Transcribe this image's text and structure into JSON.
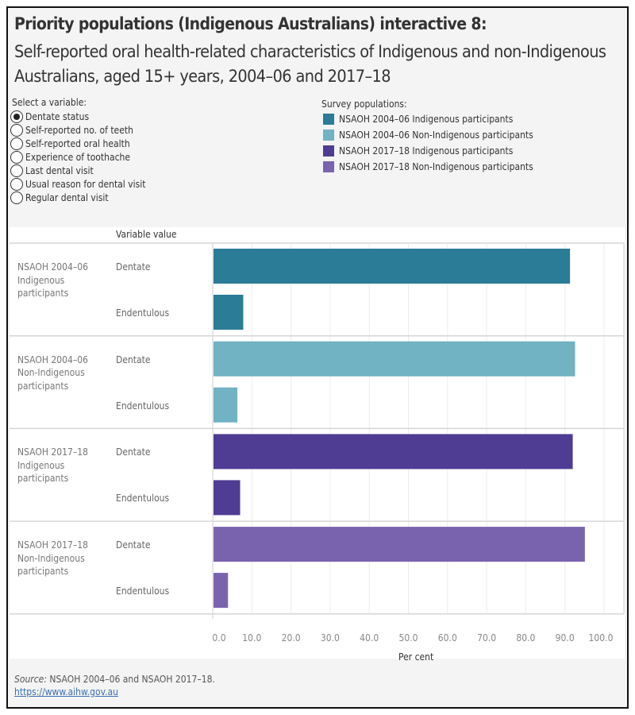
{
  "title": "Priority populations (Indigenous Australians) interactive 8:",
  "subtitle": "Self-reported oral health-related characteristics of Indigenous and non-Indigenous Australians, aged 15+ years, 2004–06 and 2017–18",
  "selector": {
    "label": "Select a variable:",
    "selected": 0,
    "options": [
      "Dentate status",
      "Self-reported no. of teeth",
      "Self-reported oral health",
      "Experience of toothache",
      "Last dental visit",
      "Usual reason for dental visit",
      "Regular dental visit"
    ]
  },
  "legend": {
    "title": "Survey populations:",
    "items": [
      {
        "label": "NSAOH 2004–06 Indigenous participants",
        "color": "#2a7c97"
      },
      {
        "label": "NSAOH 2004–06 Non-Indigenous participants",
        "color": "#71b2c3"
      },
      {
        "label": "NSAOH 2017–18 Indigenous participants",
        "color": "#4f3c93"
      },
      {
        "label": "NSAOH 2017–18 Non-Indigenous participants",
        "color": "#7a63ae"
      }
    ]
  },
  "chart_data": {
    "type": "bar",
    "orientation": "horizontal",
    "column_header": "Variable value",
    "xlabel": "Per cent",
    "xlim": [
      0,
      100
    ],
    "ticks": [
      "0.0",
      "10.0",
      "20.0",
      "30.0",
      "40.0",
      "50.0",
      "60.0",
      "70.0",
      "80.0",
      "90.0",
      "100.0"
    ],
    "grid": true,
    "legend": "top-right",
    "categories": [
      "Dentate",
      "Endentulous"
    ],
    "series": [
      {
        "name": "NSAOH 2004–06 Indigenous participants",
        "values": [
          91.3,
          7.8
        ]
      },
      {
        "name": "NSAOH 2004–06 Non-Indigenous participants",
        "values": [
          92.6,
          6.3
        ]
      },
      {
        "name": "NSAOH 2017–18 Indigenous participants",
        "values": [
          92.0,
          7.0
        ]
      },
      {
        "name": "NSAOH 2017–18 Non-Indigenous participants",
        "values": [
          95.1,
          3.9
        ]
      }
    ]
  },
  "group_labels": [
    [
      "NSAOH 2004–06",
      "Indigenous",
      "participants"
    ],
    [
      "NSAOH 2004–06",
      "Non-Indigenous",
      "participants"
    ],
    [
      "NSAOH 2017–18",
      "Indigenous",
      "participants"
    ],
    [
      "NSAOH 2017–18",
      "Non-Indigenous",
      "participants"
    ]
  ],
  "footer": {
    "source_label": "Source:",
    "source_text": " NSAOH 2004–06 and NSAOH 2017–18.",
    "link": "https://www.aihw.gov.au"
  }
}
